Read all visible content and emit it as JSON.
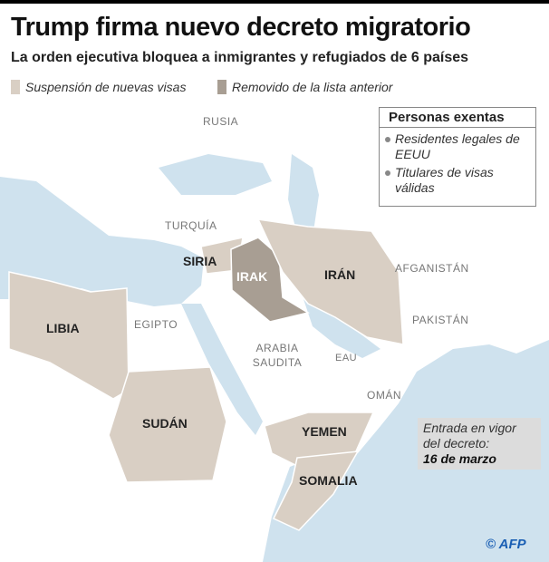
{
  "title": "Trump firma nuevo decreto migratorio",
  "subtitle": "La orden ejecutiva bloquea a inmigrantes y refugiados de 6 países",
  "legend": [
    {
      "label": "Suspensión de nuevas visas",
      "color": "#d9cfc4"
    },
    {
      "label": "Removido de la lista anterior",
      "color": "#a89e93"
    }
  ],
  "colors": {
    "sea": "#cfe2ee",
    "land": "#ffffff",
    "suspended": "#d9cfc4",
    "removed": "#a89e93"
  },
  "countries_highlighted": [
    "SIRIA",
    "IRÁN",
    "LIBIA",
    "SUDÁN",
    "YEMEN",
    "SOMALIA"
  ],
  "countries_removed": [
    "IRAK"
  ],
  "other_labels": [
    "RUSIA",
    "TURQUÍA",
    "AFGANISTÁN",
    "PAKISTÁN",
    "EGIPTO",
    "ARABIA SAUDITA",
    "EAU",
    "OMÁN"
  ],
  "exempt": {
    "heading": "Personas exentas",
    "items": [
      "Residentes legales de EEUU",
      "Titulares de visas válidas"
    ]
  },
  "effective": {
    "line1": "Entrada en vigor",
    "line2": "del decreto:",
    "date": "16 de marzo"
  },
  "credit": "© AFP"
}
